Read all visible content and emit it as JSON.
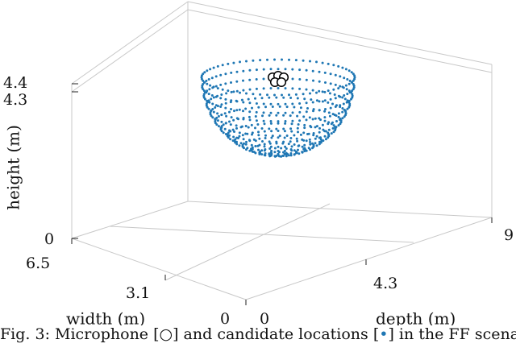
{
  "chart_data": {
    "type": "scatter",
    "projection": "3d",
    "title": "",
    "xlabel": "depth (m)",
    "ylabel": "width (m)",
    "zlabel": "height (m)",
    "x_ticks": [
      "0",
      "4.3",
      "9"
    ],
    "y_ticks": [
      "0",
      "3.1",
      "6.5"
    ],
    "z_ticks": [
      "0",
      "4.3",
      "4.4"
    ],
    "xlim": [
      0,
      9
    ],
    "ylim": [
      0,
      6.5
    ],
    "zlim": [
      0,
      4.4
    ],
    "grid": true,
    "series": [
      {
        "name": "candidate locations",
        "marker": "dot",
        "color": "#1f77b4",
        "shape": "lower hemisphere of points centred near the microphones"
      },
      {
        "name": "microphone",
        "marker": "open-circle",
        "color": "#000000",
        "count": 5
      }
    ]
  },
  "caption": {
    "text_before": "Fig. 3: Microphone [",
    "mic_symbol": "○",
    "text_middle": "] and candidate locations [",
    "cand_symbol": "•",
    "text_after": "] in the FF scenario"
  }
}
